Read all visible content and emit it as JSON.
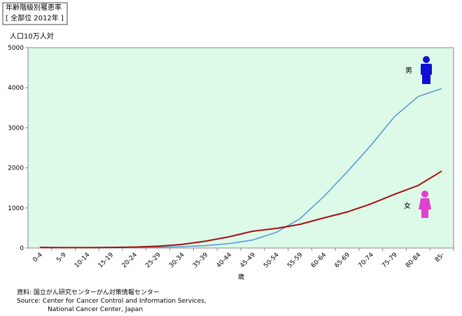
{
  "chart_data": {
    "type": "line",
    "title": "年齢階級別罹患率",
    "subtitle": "[ 全部位 2012年 ]",
    "y_label": "人口10万人対",
    "x_label": "歳",
    "source": [
      "資料:  国立がん研究センターがん対策情報センター",
      "Source: Center for Cancer Control and Information Services,",
      "National Cancer Center, Japan"
    ],
    "categories": [
      "0-4",
      "5-9",
      "10-14",
      "15-19",
      "20-24",
      "25-29",
      "30-34",
      "35-39",
      "40-44",
      "45-49",
      "50-54",
      "55-59",
      "60-64",
      "65-69",
      "70-74",
      "75-79",
      "80-84",
      "85-"
    ],
    "series": [
      {
        "name": "男",
        "color": "#5b9bd5",
        "values": [
          15,
          10,
          10,
          12,
          15,
          20,
          35,
          60,
          110,
          200,
          390,
          730,
          1280,
          1900,
          2560,
          3280,
          3780,
          3980
        ]
      },
      {
        "name": "女",
        "color": "#a50f0f",
        "values": [
          15,
          10,
          10,
          15,
          25,
          45,
          90,
          170,
          280,
          420,
          490,
          590,
          750,
          900,
          1100,
          1340,
          1560,
          1920
        ]
      }
    ],
    "ylim": [
      0,
      5000
    ],
    "yticks": [
      0,
      1000,
      2000,
      3000,
      4000,
      5000
    ],
    "background": "#ddf9e8"
  }
}
